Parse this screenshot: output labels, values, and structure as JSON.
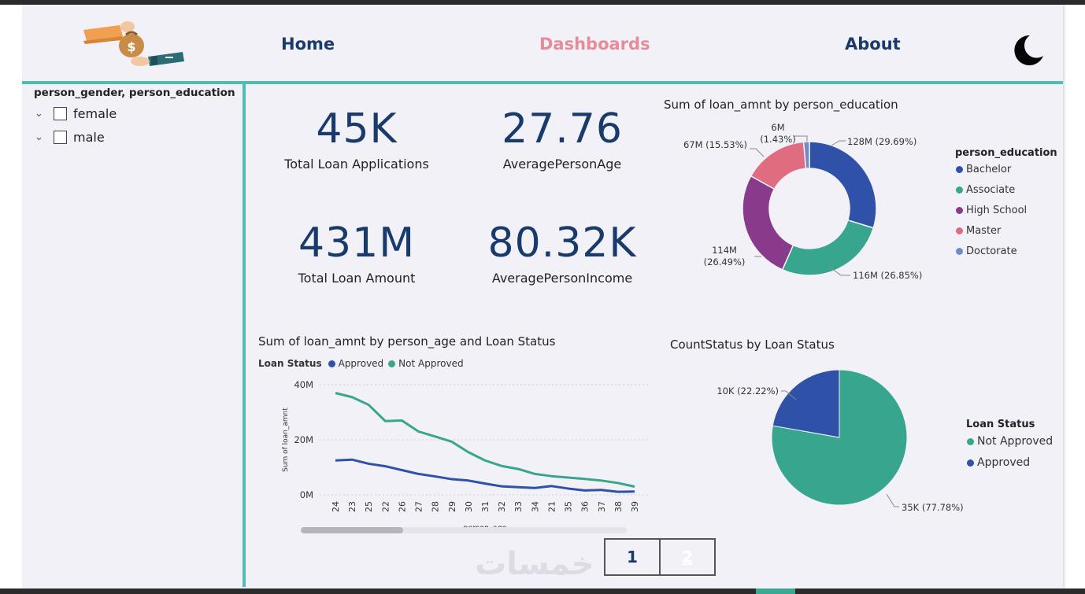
{
  "nav": {
    "home": "Home",
    "dashboards": "Dashboards",
    "about": "About"
  },
  "colors": {
    "accent": "#4fbdb6",
    "navy": "#183b6b",
    "active": "#e88b98",
    "approved": "#2f52a8",
    "not_approved": "#38a68f"
  },
  "slicer": {
    "title": "person_gender, person_education",
    "items": [
      {
        "label": "female"
      },
      {
        "label": "male"
      }
    ]
  },
  "kpis": [
    {
      "value": "45K",
      "label": "Total Loan Applications"
    },
    {
      "value": "27.76",
      "label": "AveragePersonAge"
    },
    {
      "value": "431M",
      "label": "Total Loan Amount"
    },
    {
      "value": "80.32K",
      "label": "AveragePersonIncome"
    }
  ],
  "pager": {
    "page1": "1",
    "page2": "2"
  },
  "watermark": "خمسات",
  "chart_data": [
    {
      "type": "donut",
      "title": "Sum of loan_amnt by person_education",
      "legend_title": "person_education",
      "categories": [
        "Bachelor",
        "Associate",
        "High School",
        "Master",
        "Doctorate"
      ],
      "values": [
        128,
        116,
        114,
        67,
        6
      ],
      "labels": [
        "128M (29.69%)",
        "116M (26.85%)",
        "114M (26.49%)",
        "67M (15.53%)",
        "6M (1.43%)"
      ],
      "colors": [
        "#2f52a8",
        "#38a68f",
        "#8a3a8a",
        "#e06c80",
        "#6f8cc7"
      ]
    },
    {
      "type": "line",
      "title": "Sum of loan_amnt by person_age and Loan Status",
      "legend_title": "Loan Status",
      "xlabel": "person_age",
      "ylabel": "Sum of loan_amnt",
      "yticks": [
        "0M",
        "20M",
        "40M"
      ],
      "ylim": [
        0,
        40
      ],
      "categories": [
        "24",
        "23",
        "25",
        "22",
        "26",
        "27",
        "28",
        "29",
        "30",
        "31",
        "32",
        "33",
        "34",
        "21",
        "35",
        "36",
        "37",
        "38",
        "39"
      ],
      "series": [
        {
          "name": "Approved",
          "color": "#2f52a8",
          "values": [
            12.5,
            12.8,
            11.3,
            10.4,
            9.0,
            7.6,
            6.7,
            5.7,
            5.2,
            4.1,
            3.1,
            2.8,
            2.5,
            3.2,
            2.3,
            1.6,
            1.8,
            1.1,
            1.2
          ]
        },
        {
          "name": "Not Approved",
          "color": "#38a68f",
          "values": [
            37.0,
            35.5,
            32.7,
            26.8,
            27.0,
            23.0,
            21.2,
            19.3,
            15.5,
            12.5,
            10.5,
            9.4,
            7.6,
            6.8,
            6.3,
            5.8,
            5.2,
            4.3,
            3.0
          ]
        }
      ]
    },
    {
      "type": "pie",
      "title": "CountStatus by Loan Status",
      "legend_title": "Loan Status",
      "categories": [
        "Not Approved",
        "Approved"
      ],
      "values": [
        35,
        10
      ],
      "labels": [
        "35K (77.78%)",
        "10K (22.22%)"
      ],
      "colors": [
        "#38a68f",
        "#2f52a8"
      ]
    }
  ]
}
